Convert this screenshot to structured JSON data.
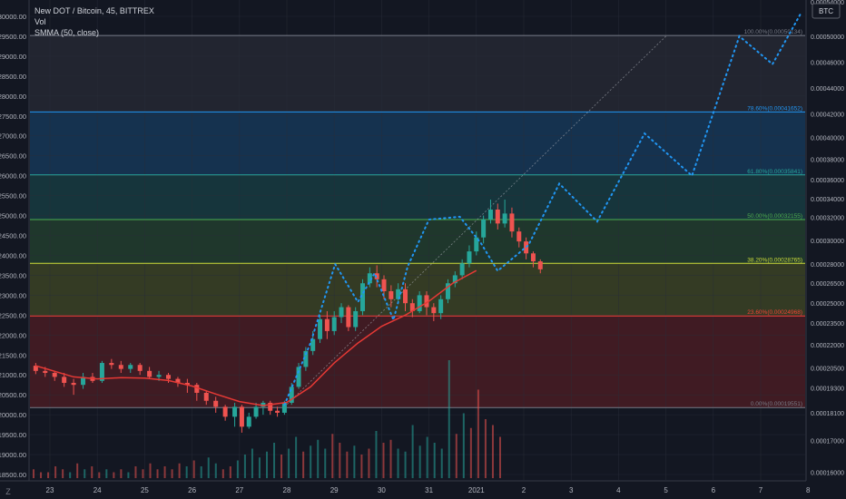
{
  "legend": {
    "symbol_line": "New DOT / Bitcoin, 45, BITTREX",
    "vol_label": "Vol",
    "smma_label": "SMMA (50, close)"
  },
  "corner_button": "Z",
  "currency_badge": "BTC",
  "colors": {
    "background": "#131722",
    "grid": "#2a2e39",
    "axis_text": "#b2b5be",
    "candle_up": "#26a69a",
    "candle_down": "#ef5350",
    "smma": "#e53935",
    "projection": "#2196f3",
    "pattern": "#b2b5be"
  },
  "chart_data": {
    "type": "candlestick",
    "title": "New DOT / Bitcoin, 45, BITTREX",
    "left_axis": {
      "ylim": [
        18400,
        30200
      ],
      "ticks": [
        "30000.00",
        "29500.00",
        "29000.00",
        "28500.00",
        "28000.00",
        "27500.00",
        "27000.00",
        "26500.00",
        "26000.00",
        "25500.00",
        "25000.00",
        "24500.00",
        "24000.00",
        "23500.00",
        "23000.00",
        "22500.00",
        "22000.00",
        "21500.00",
        "21000.00",
        "20500.00",
        "20000.00",
        "19500.00",
        "19000.00",
        "18500.00"
      ],
      "tick_values": [
        30000,
        29500,
        29000,
        28500,
        28000,
        27500,
        27000,
        26500,
        26000,
        25500,
        25000,
        24500,
        24000,
        23500,
        23000,
        22500,
        22000,
        21500,
        21000,
        20500,
        20000,
        19500,
        19000,
        18500
      ]
    },
    "right_axis": {
      "ticks": [
        "0.00050000",
        "0.00046000",
        "0.00044000",
        "0.00042000",
        "0.00040000",
        "0.00038000",
        "0.00036000",
        "0.00034000",
        "0.00032000",
        "0.00030000",
        "0.00028000",
        "0.00026500",
        "0.00025000",
        "0.00023500",
        "0.00022000",
        "0.00020500",
        "0.00019300",
        "0.00018100",
        "0.00017000",
        "0.00016000"
      ],
      "tick_left_values": [
        29500,
        28850,
        28200,
        27550,
        26960,
        26410,
        25900,
        25420,
        24960,
        24380,
        23780,
        23300,
        22800,
        22300,
        21760,
        21180,
        20680,
        20050,
        19350,
        18560
      ],
      "top_partial": "0.00054000"
    },
    "x_axis": {
      "labels": [
        "23",
        "24",
        "25",
        "26",
        "27",
        "28",
        "29",
        "30",
        "31",
        "2021",
        "2",
        "3",
        "4",
        "5",
        "6",
        "7",
        "8"
      ],
      "positions": [
        0,
        1,
        2,
        3,
        4,
        5,
        6,
        7,
        8,
        9,
        10,
        11,
        12,
        13,
        14,
        15,
        16
      ]
    },
    "fib_levels": [
      {
        "label": "100.00%(0.00050134)",
        "value": 29520,
        "color": "#787b86"
      },
      {
        "label": "78.60%(0.00041652)",
        "value": 27600,
        "color": "#2196f3"
      },
      {
        "label": "61.80%(0.00035841)",
        "value": 26020,
        "color": "#26a69a"
      },
      {
        "label": "50.00%(0.00032155)",
        "value": 24900,
        "color": "#4caf50"
      },
      {
        "label": "38.20%(0.00028765)",
        "value": 23800,
        "color": "#cddc39"
      },
      {
        "label": "23.60%(0.00024968)",
        "value": 22480,
        "color": "#f44336"
      },
      {
        "label": "0.00%(0.00019551)",
        "value": 20180,
        "color": "#787b86"
      }
    ],
    "fib_zones": [
      {
        "from": 29520,
        "to": 27600,
        "color": "#787b86",
        "opacity": 0.15
      },
      {
        "from": 27600,
        "to": 26020,
        "color": "#2196f3",
        "opacity": 0.22
      },
      {
        "from": 26020,
        "to": 24900,
        "color": "#26a69a",
        "opacity": 0.22
      },
      {
        "from": 24900,
        "to": 23800,
        "color": "#4caf50",
        "opacity": 0.22
      },
      {
        "from": 23800,
        "to": 22480,
        "color": "#8b9a2a",
        "opacity": 0.28
      },
      {
        "from": 22480,
        "to": 20180,
        "color": "#c62828",
        "opacity": 0.25
      }
    ],
    "smma": {
      "name": "SMMA (50, close)",
      "x": [
        -0.3,
        0.5,
        1,
        1.5,
        2,
        2.5,
        3,
        3.5,
        4,
        4.5,
        5,
        5.5,
        6,
        6.5,
        7,
        7.5,
        8,
        8.5,
        9
      ],
      "y": [
        21230,
        20950,
        20900,
        20930,
        20920,
        20860,
        20720,
        20520,
        20330,
        20230,
        20310,
        20700,
        21300,
        21800,
        22220,
        22500,
        22850,
        23300,
        23620
      ]
    },
    "projection": {
      "x": [
        4.95,
        5.5,
        6.02,
        6.5,
        6.85,
        7.25,
        7.55,
        8.0,
        8.65,
        9.1,
        9.45,
        10.1,
        10.75,
        11.55,
        12.55,
        13.55,
        14.55,
        15.25,
        15.85
      ],
      "y": [
        20250,
        21800,
        23780,
        22830,
        23550,
        22380,
        23720,
        24900,
        24970,
        24300,
        23610,
        24260,
        25800,
        24850,
        27060,
        26000,
        29500,
        28800,
        30080
      ]
    },
    "diagonal_line": {
      "x": [
        4.95,
        13.0
      ],
      "y": [
        20200,
        29500
      ]
    },
    "candles": [
      {
        "x": -0.3,
        "o": 21230,
        "c": 21100,
        "h": 21300,
        "l": 21020
      },
      {
        "x": -0.1,
        "o": 21100,
        "c": 21050,
        "h": 21200,
        "l": 20950
      },
      {
        "x": 0.1,
        "o": 21050,
        "c": 20950,
        "h": 21100,
        "l": 20850
      },
      {
        "x": 0.3,
        "o": 20950,
        "c": 20800,
        "h": 21050,
        "l": 20700
      },
      {
        "x": 0.5,
        "o": 20800,
        "c": 20750,
        "h": 20900,
        "l": 20500
      },
      {
        "x": 0.7,
        "o": 20750,
        "c": 20950,
        "h": 21050,
        "l": 20650
      },
      {
        "x": 0.9,
        "o": 20950,
        "c": 20850,
        "h": 21050,
        "l": 20800
      },
      {
        "x": 1.1,
        "o": 20850,
        "c": 21300,
        "h": 21350,
        "l": 20800
      },
      {
        "x": 1.3,
        "o": 21300,
        "c": 21250,
        "h": 21400,
        "l": 21150
      },
      {
        "x": 1.5,
        "o": 21250,
        "c": 21150,
        "h": 21350,
        "l": 21050
      },
      {
        "x": 1.7,
        "o": 21150,
        "c": 21250,
        "h": 21300,
        "l": 21050
      },
      {
        "x": 1.9,
        "o": 21250,
        "c": 21100,
        "h": 21300,
        "l": 21000
      },
      {
        "x": 2.1,
        "o": 21100,
        "c": 20950,
        "h": 21200,
        "l": 20900
      },
      {
        "x": 2.3,
        "o": 20950,
        "c": 21000,
        "h": 21100,
        "l": 20850
      },
      {
        "x": 2.5,
        "o": 21000,
        "c": 20900,
        "h": 21050,
        "l": 20800
      },
      {
        "x": 2.7,
        "o": 20900,
        "c": 20800,
        "h": 20950,
        "l": 20700
      },
      {
        "x": 2.9,
        "o": 20800,
        "c": 20750,
        "h": 20900,
        "l": 20550
      },
      {
        "x": 3.1,
        "o": 20750,
        "c": 20550,
        "h": 20800,
        "l": 20350
      },
      {
        "x": 3.3,
        "o": 20550,
        "c": 20350,
        "h": 20600,
        "l": 20250
      },
      {
        "x": 3.5,
        "o": 20350,
        "c": 20200,
        "h": 20450,
        "l": 20050
      },
      {
        "x": 3.7,
        "o": 20200,
        "c": 19950,
        "h": 20250,
        "l": 19850
      },
      {
        "x": 3.9,
        "o": 19950,
        "c": 20200,
        "h": 20300,
        "l": 19700
      },
      {
        "x": 4.05,
        "o": 20200,
        "c": 19700,
        "h": 20250,
        "l": 19550
      },
      {
        "x": 4.2,
        "o": 19700,
        "c": 19950,
        "h": 20050,
        "l": 19650
      },
      {
        "x": 4.35,
        "o": 19950,
        "c": 20200,
        "h": 20300,
        "l": 19900
      },
      {
        "x": 4.5,
        "o": 20200,
        "c": 20300,
        "h": 20350,
        "l": 20000
      },
      {
        "x": 4.65,
        "o": 20300,
        "c": 20100,
        "h": 20350,
        "l": 20000
      },
      {
        "x": 4.8,
        "o": 20100,
        "c": 20050,
        "h": 20200,
        "l": 19950
      },
      {
        "x": 4.95,
        "o": 20050,
        "c": 20300,
        "h": 20350,
        "l": 20000
      },
      {
        "x": 5.1,
        "o": 20300,
        "c": 20700,
        "h": 20800,
        "l": 20250
      },
      {
        "x": 5.25,
        "o": 20700,
        "c": 21200,
        "h": 21300,
        "l": 20650
      },
      {
        "x": 5.4,
        "o": 21200,
        "c": 21600,
        "h": 21700,
        "l": 21100
      },
      {
        "x": 5.55,
        "o": 21600,
        "c": 21900,
        "h": 22100,
        "l": 21500
      },
      {
        "x": 5.7,
        "o": 21900,
        "c": 22400,
        "h": 22500,
        "l": 21800
      },
      {
        "x": 5.85,
        "o": 22400,
        "c": 22100,
        "h": 22600,
        "l": 21900
      },
      {
        "x": 6.0,
        "o": 22100,
        "c": 22450,
        "h": 22600,
        "l": 22000
      },
      {
        "x": 6.15,
        "o": 22450,
        "c": 22700,
        "h": 22800,
        "l": 22300
      },
      {
        "x": 6.3,
        "o": 22700,
        "c": 22200,
        "h": 22750,
        "l": 22100
      },
      {
        "x": 6.45,
        "o": 22200,
        "c": 22600,
        "h": 22700,
        "l": 22100
      },
      {
        "x": 6.6,
        "o": 22600,
        "c": 23300,
        "h": 23400,
        "l": 22500
      },
      {
        "x": 6.75,
        "o": 23300,
        "c": 23550,
        "h": 23700,
        "l": 23200
      },
      {
        "x": 6.9,
        "o": 23550,
        "c": 23400,
        "h": 23750,
        "l": 23200
      },
      {
        "x": 7.05,
        "o": 23400,
        "c": 23100,
        "h": 23500,
        "l": 22900
      },
      {
        "x": 7.2,
        "o": 23100,
        "c": 22900,
        "h": 23250,
        "l": 22700
      },
      {
        "x": 7.35,
        "o": 22900,
        "c": 23150,
        "h": 23300,
        "l": 22800
      },
      {
        "x": 7.5,
        "o": 23150,
        "c": 22800,
        "h": 23300,
        "l": 22600
      },
      {
        "x": 7.65,
        "o": 22800,
        "c": 22600,
        "h": 22900,
        "l": 22450
      },
      {
        "x": 7.8,
        "o": 22600,
        "c": 23000,
        "h": 23100,
        "l": 22550
      },
      {
        "x": 7.95,
        "o": 23000,
        "c": 22700,
        "h": 23100,
        "l": 22500
      },
      {
        "x": 8.1,
        "o": 22700,
        "c": 22550,
        "h": 22800,
        "l": 22350
      },
      {
        "x": 8.25,
        "o": 22550,
        "c": 22900,
        "h": 23000,
        "l": 22400
      },
      {
        "x": 8.4,
        "o": 22900,
        "c": 23300,
        "h": 23400,
        "l": 22800
      },
      {
        "x": 8.55,
        "o": 23300,
        "c": 23500,
        "h": 23600,
        "l": 23200
      },
      {
        "x": 8.7,
        "o": 23500,
        "c": 23800,
        "h": 23900,
        "l": 23400
      },
      {
        "x": 8.85,
        "o": 23800,
        "c": 24100,
        "h": 24250,
        "l": 23700
      },
      {
        "x": 9.0,
        "o": 24100,
        "c": 24450,
        "h": 24600,
        "l": 24000
      },
      {
        "x": 9.15,
        "o": 24450,
        "c": 24900,
        "h": 25000,
        "l": 24300
      },
      {
        "x": 9.3,
        "o": 24900,
        "c": 25150,
        "h": 25400,
        "l": 24800
      },
      {
        "x": 9.45,
        "o": 25150,
        "c": 24800,
        "h": 25300,
        "l": 24650
      },
      {
        "x": 9.6,
        "o": 24800,
        "c": 25050,
        "h": 25400,
        "l": 24700
      },
      {
        "x": 9.75,
        "o": 25050,
        "c": 24600,
        "h": 25200,
        "l": 24450
      },
      {
        "x": 9.9,
        "o": 24600,
        "c": 24350,
        "h": 24700,
        "l": 24200
      },
      {
        "x": 10.05,
        "o": 24350,
        "c": 24050,
        "h": 24450,
        "l": 23900
      },
      {
        "x": 10.2,
        "o": 24050,
        "c": 23850,
        "h": 24100,
        "l": 23700
      },
      {
        "x": 10.35,
        "o": 23850,
        "c": 23650,
        "h": 23900,
        "l": 23550
      }
    ],
    "volume": [
      3,
      2,
      2,
      4,
      3,
      2,
      5,
      3,
      4,
      2,
      3,
      2,
      3,
      2,
      4,
      3,
      5,
      3,
      4,
      3,
      5,
      4,
      6,
      4,
      7,
      5,
      3,
      4,
      6,
      8,
      10,
      7,
      9,
      12,
      8,
      10,
      14,
      9,
      11,
      13,
      10,
      15,
      12,
      9,
      11,
      8,
      10,
      16,
      12,
      13,
      10,
      9,
      18,
      11,
      14,
      12,
      10,
      40,
      15,
      22,
      17,
      30,
      20,
      18,
      14
    ],
    "volume_max": 40
  }
}
